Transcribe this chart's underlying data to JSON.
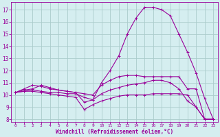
{
  "background_color": "#d5eef0",
  "line_color": "#990099",
  "grid_color": "#aacccc",
  "xlabel": "Windchill (Refroidissement éolien,°C)",
  "xlabel_color": "#990099",
  "tick_color": "#990099",
  "xlim": [
    -0.5,
    23.5
  ],
  "ylim": [
    7.8,
    17.6
  ],
  "yticks": [
    8,
    9,
    10,
    11,
    12,
    13,
    14,
    15,
    16,
    17
  ],
  "xticks": [
    0,
    1,
    2,
    3,
    4,
    5,
    6,
    7,
    8,
    9,
    10,
    11,
    12,
    13,
    14,
    15,
    16,
    17,
    18,
    19,
    20,
    21,
    22,
    23
  ],
  "curves": [
    [
      10.2,
      10.4,
      10.5,
      10.8,
      10.6,
      10.4,
      10.3,
      10.2,
      9.4,
      9.6,
      11.0,
      12.0,
      13.2,
      15.0,
      16.3,
      17.2,
      17.2,
      17.0,
      16.5,
      15.0,
      13.5,
      11.8,
      9.7,
      8.0
    ],
    [
      10.2,
      10.5,
      10.8,
      10.7,
      10.5,
      10.4,
      10.3,
      10.2,
      10.1,
      10.0,
      10.8,
      11.2,
      11.5,
      11.6,
      11.6,
      11.5,
      11.5,
      11.5,
      11.5,
      11.5,
      10.5,
      10.5,
      8.0,
      8.0
    ],
    [
      10.2,
      10.3,
      10.4,
      10.3,
      10.2,
      10.2,
      10.1,
      10.1,
      9.8,
      9.6,
      10.1,
      10.4,
      10.6,
      10.8,
      10.9,
      11.0,
      11.2,
      11.2,
      11.0,
      10.5,
      9.5,
      9.0,
      8.0,
      8.0
    ],
    [
      10.2,
      10.3,
      10.3,
      10.2,
      10.1,
      10.0,
      9.9,
      9.8,
      8.8,
      9.2,
      9.5,
      9.7,
      9.9,
      10.0,
      10.0,
      10.0,
      10.1,
      10.1,
      10.1,
      10.1,
      10.0,
      9.0,
      8.0,
      8.0
    ]
  ]
}
